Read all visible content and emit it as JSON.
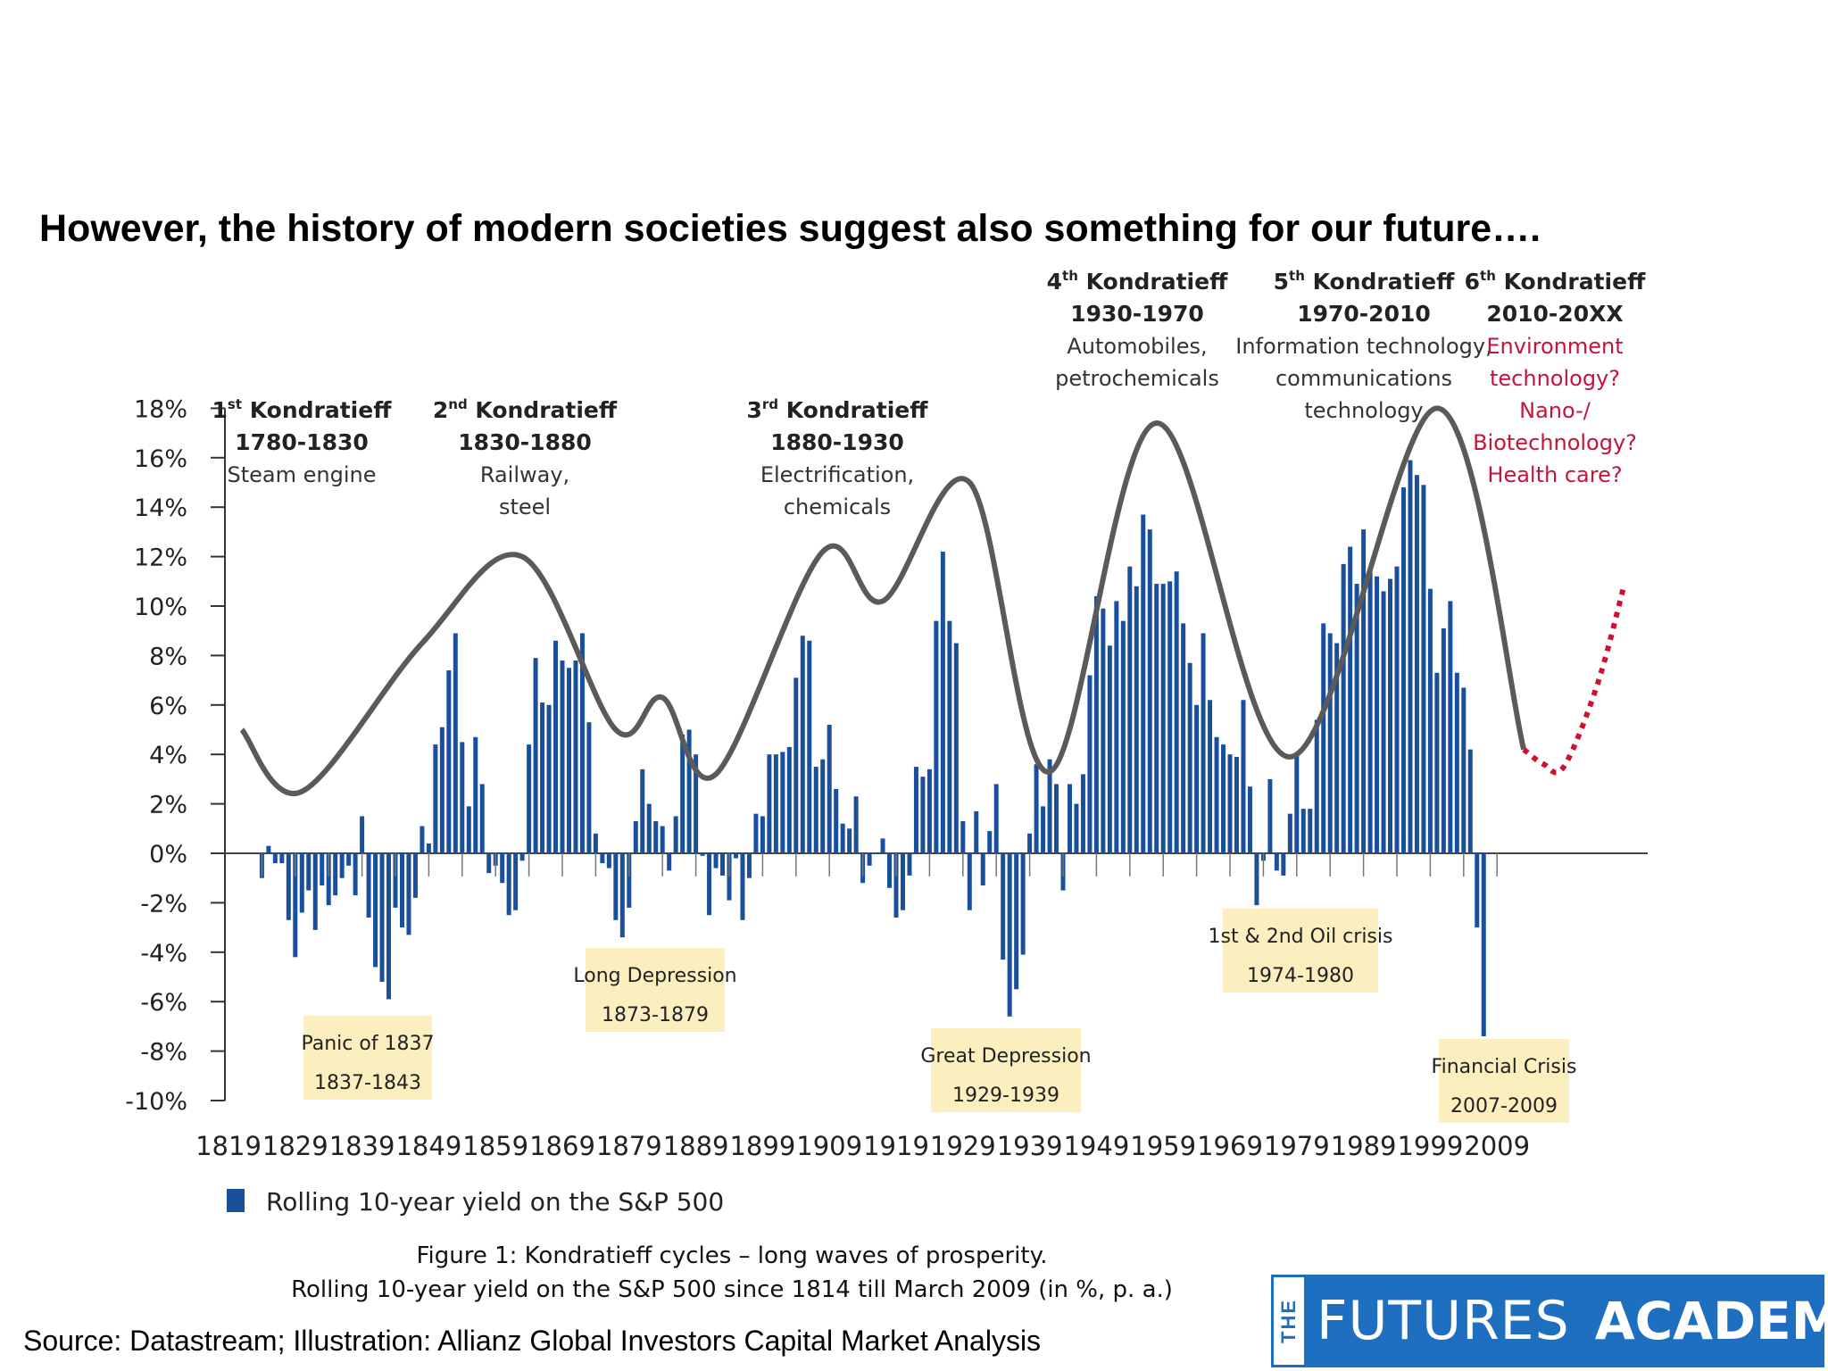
{
  "slide": {
    "title": "However, the history of modern societies suggest also something for our future….",
    "caption_line1": "Figure 1: Kondratieff cycles – long waves of prosperity.",
    "caption_line2": "Rolling 10-year yield on the S&P 500 since 1814 till March 2009 (in %, p. a.)",
    "source": "Source: Datastream; Illustration: Allianz Global Investors Capital Market Analysis"
  },
  "logo": {
    "the": "THE",
    "word1": "FUTURES",
    "word2": "ACADEMY"
  },
  "colors": {
    "bars": "#1a4f9c",
    "wave": "#5a5a5a",
    "forecast": "#cc1133",
    "annotation_bg": "#fbefbf",
    "future_text": "#c4143c",
    "logo_blue": "#1f6fc0"
  },
  "chart_data": {
    "type": "bar",
    "title": "",
    "xlabel": "",
    "ylabel": "",
    "ylim": [
      -10,
      18
    ],
    "xlim": [
      1819,
      2030
    ],
    "y_ticks": [
      18,
      16,
      14,
      12,
      10,
      8,
      6,
      4,
      2,
      0,
      -2,
      -4,
      -6,
      -8,
      -10
    ],
    "y_tick_labels": [
      "18%",
      "16%",
      "14%",
      "12%",
      "10%",
      "8%",
      "6%",
      "4%",
      "2%",
      "0%",
      "-2%",
      "-4%",
      "-6%",
      "-8%",
      "-10%"
    ],
    "x_ticks": [
      1819,
      1829,
      1839,
      1849,
      1859,
      1869,
      1879,
      1889,
      1899,
      1909,
      1919,
      1929,
      1939,
      1949,
      1959,
      1969,
      1979,
      1989,
      1999,
      2009
    ],
    "legend_position": "bottom-left",
    "series": [
      {
        "name": "Rolling 10-year yield on the S&P 500",
        "start_year": 1824,
        "values": [
          -1.0,
          0.3,
          -0.4,
          -0.4,
          -2.7,
          -4.2,
          -2.4,
          -1.5,
          -3.1,
          -1.3,
          -2.1,
          -1.7,
          -1.0,
          -0.5,
          -1.7,
          1.5,
          -2.6,
          -4.6,
          -5.2,
          -5.9,
          -2.2,
          -3.0,
          -3.3,
          -1.8,
          1.1,
          0.4,
          4.4,
          5.1,
          7.4,
          8.9,
          4.5,
          1.9,
          4.7,
          2.8,
          -0.8,
          -0.5,
          -1.2,
          -2.5,
          -2.3,
          -0.3,
          4.4,
          7.9,
          6.1,
          6.0,
          8.6,
          7.8,
          7.5,
          7.8,
          8.9,
          5.3,
          0.8,
          -0.4,
          -0.6,
          -2.7,
          -3.4,
          -2.2,
          1.3,
          3.4,
          2.0,
          1.3,
          1.1,
          -0.7,
          1.5,
          4.8,
          5.0,
          4.0,
          -0.1,
          -2.5,
          -0.6,
          -0.9,
          -1.9,
          -0.2,
          -2.7,
          -1.0,
          1.6,
          1.5,
          4.0,
          4.0,
          4.1,
          4.3,
          7.1,
          8.8,
          8.6,
          3.5,
          3.8,
          5.2,
          2.6,
          1.2,
          1.0,
          2.3,
          -1.2,
          -0.5,
          0.0,
          0.6,
          -1.4,
          -2.6,
          -2.3,
          -0.9,
          3.5,
          3.1,
          3.4,
          9.4,
          12.2,
          9.4,
          8.5,
          1.3,
          -2.3,
          1.7,
          -1.3,
          0.9,
          2.8,
          -4.3,
          -6.6,
          -5.5,
          -4.1,
          0.8,
          3.6,
          1.9,
          3.8,
          2.8,
          -1.5,
          2.8,
          2.0,
          3.2,
          7.2,
          10.4,
          9.9,
          8.4,
          10.2,
          9.4,
          11.6,
          10.8,
          13.7,
          13.1,
          10.9,
          10.9,
          11.0,
          11.4,
          9.3,
          7.7,
          6.0,
          8.9,
          6.2,
          4.7,
          4.4,
          4.0,
          3.9,
          6.2,
          2.7,
          -2.1,
          -0.3,
          3.0,
          -0.7,
          -0.9,
          1.6,
          4.0,
          1.8,
          1.8,
          5.4,
          9.3,
          8.9,
          8.5,
          11.7,
          12.4,
          10.9,
          13.1,
          11.5,
          11.2,
          10.6,
          11.1,
          11.6,
          14.8,
          15.9,
          15.3,
          14.9,
          10.7,
          7.3,
          9.1,
          10.2,
          7.3,
          6.7,
          4.2,
          -3.0,
          -7.4
        ]
      }
    ],
    "wave": {
      "years": [
        1821,
        1830,
        1848,
        1863,
        1877,
        1884,
        1892,
        1908,
        1917,
        1930,
        1942,
        1958,
        1978,
        2000,
        2013
      ],
      "values": [
        5.0,
        2.5,
        8.5,
        12.0,
        5.0,
        6.3,
        3.2,
        12.2,
        10.2,
        15.0,
        3.3,
        17.4,
        3.9,
        18.0,
        4.2
      ]
    },
    "forecast_wave": {
      "years": [
        2013,
        2016,
        2019,
        2024,
        2028
      ],
      "values": [
        4.2,
        3.6,
        3.5,
        6.8,
        10.8
      ]
    },
    "annotations": [
      {
        "label": "1st Kondratieff",
        "period": "1780-1830",
        "theme": [
          "Steam engine"
        ]
      },
      {
        "label": "2nd Kondratieff",
        "period": "1830-1880",
        "theme": [
          "Railway,",
          "steel"
        ]
      },
      {
        "label": "3rd Kondratieff",
        "period": "1880-1930",
        "theme": [
          "Electrification,",
          "chemicals"
        ]
      },
      {
        "label": "4th Kondratieff",
        "period": "1930-1970",
        "theme": [
          "Automobiles,",
          "petrochemicals"
        ]
      },
      {
        "label": "5th Kondratieff",
        "period": "1970-2010",
        "theme": [
          "Information technology,",
          "communications",
          "technology"
        ]
      },
      {
        "label": "6th Kondratieff",
        "period": "2010-20XX",
        "theme": [
          "Environment",
          "technology?",
          "Nano-/",
          "Biotechnology?",
          "Health care?"
        ]
      }
    ],
    "crisis_boxes": [
      {
        "name": "Panic of 1837",
        "period": "1837-1843"
      },
      {
        "name": "Long Depression",
        "period": "1873-1879"
      },
      {
        "name": "Great Depression",
        "period": "1929-1939"
      },
      {
        "name": "1st & 2nd Oil crisis",
        "period": "1974-1980"
      },
      {
        "name": "Financial Crisis",
        "period": "2007-2009"
      }
    ]
  }
}
